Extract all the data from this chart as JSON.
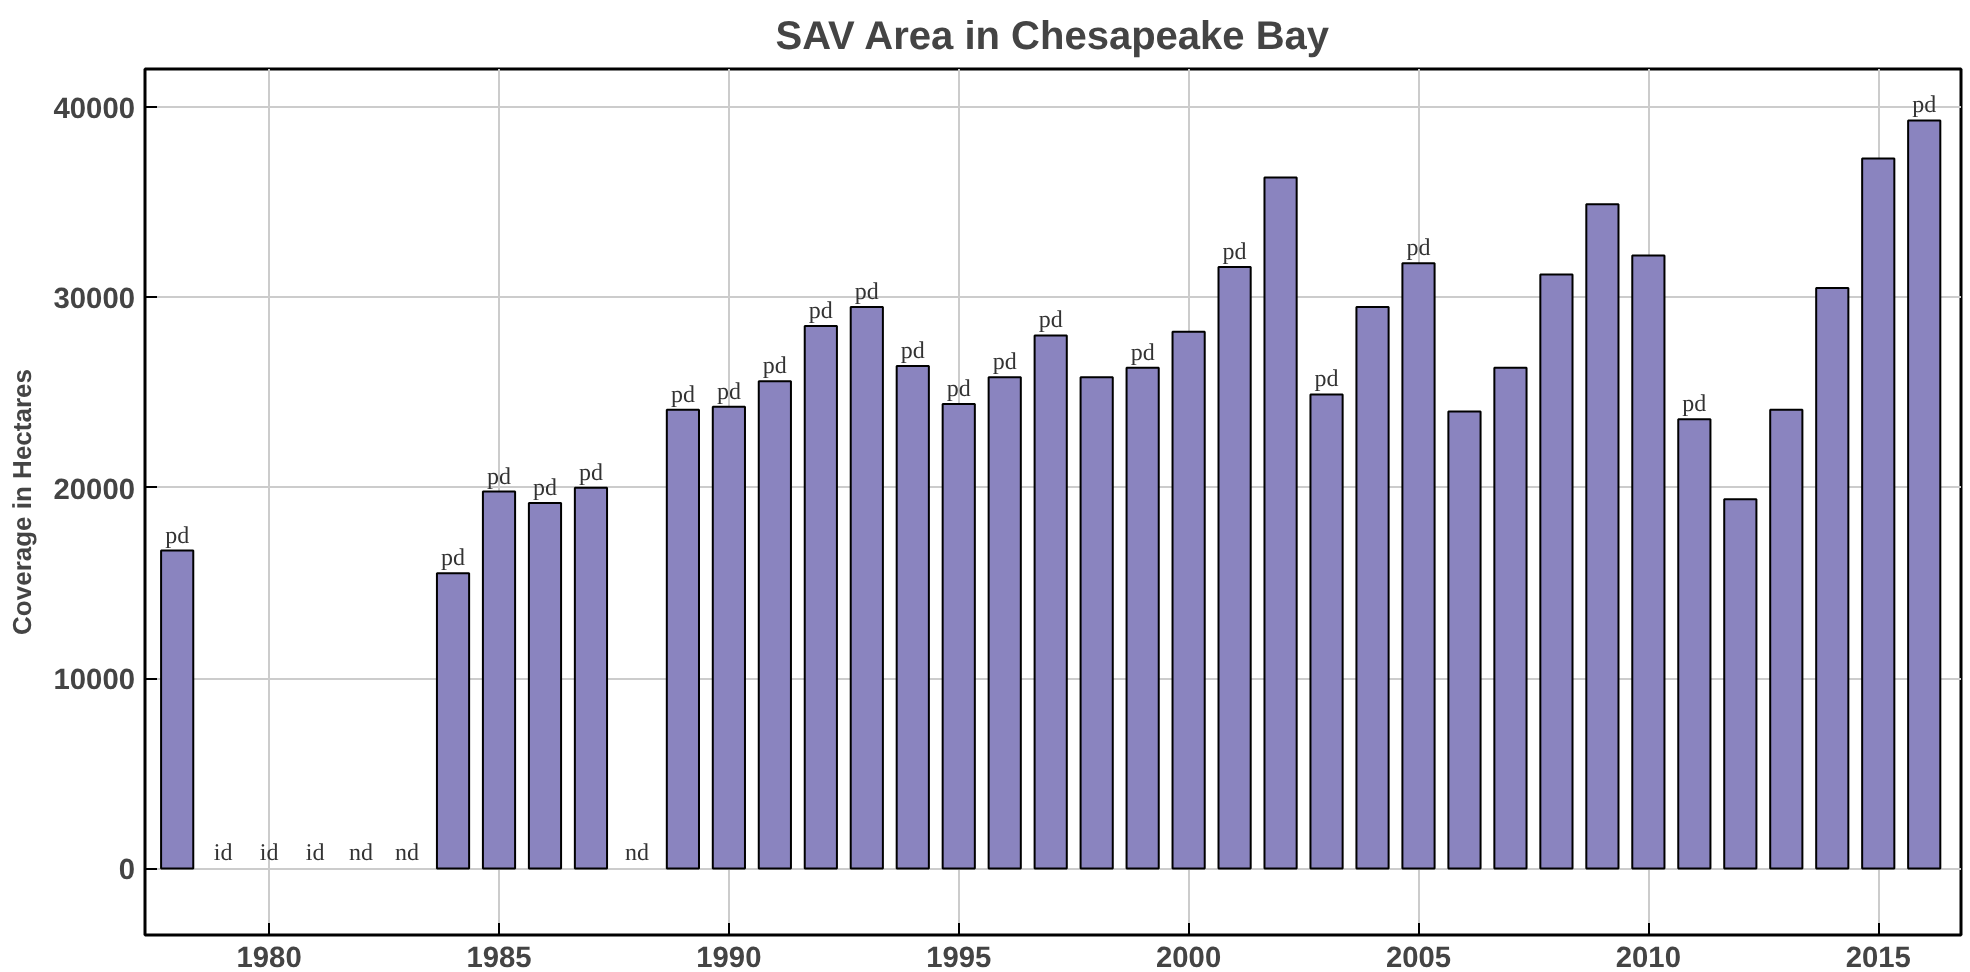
{
  "chart_data": {
    "type": "bar",
    "title": "SAV Area in Chesapeake Bay",
    "ylabel": "Coverage in Hectares",
    "x": [
      1978,
      1979,
      1980,
      1981,
      1982,
      1983,
      1984,
      1985,
      1986,
      1987,
      1988,
      1989,
      1990,
      1991,
      1992,
      1993,
      1994,
      1995,
      1996,
      1997,
      1998,
      1999,
      2000,
      2001,
      2002,
      2003,
      2004,
      2005,
      2006,
      2007,
      2008,
      2009,
      2010,
      2011,
      2012,
      2013,
      2014,
      2015,
      2016
    ],
    "values": [
      16700,
      null,
      null,
      null,
      null,
      null,
      15500,
      19800,
      19200,
      20000,
      null,
      24100,
      24250,
      25600,
      28500,
      29500,
      26400,
      24400,
      25800,
      28000,
      25800,
      26300,
      28200,
      31600,
      36300,
      24900,
      29500,
      31800,
      24000,
      26300,
      31200,
      34900,
      32200,
      23600,
      19400,
      24100,
      30500,
      37300,
      39300
    ],
    "value_labels": [
      "pd",
      "id",
      "id",
      "id",
      "nd",
      "nd",
      "pd",
      "pd",
      "pd",
      "pd",
      "nd",
      "pd",
      "pd",
      "pd",
      "pd",
      "pd",
      "pd",
      "pd",
      "pd",
      "pd",
      null,
      "pd",
      null,
      "pd",
      null,
      "pd",
      null,
      "pd",
      null,
      null,
      null,
      null,
      null,
      "pd",
      null,
      null,
      null,
      null,
      "pd"
    ],
    "color": "#8a84bf",
    "xlim": [
      1977.3,
      2016.8
    ],
    "xticks": [
      1980,
      1985,
      1990,
      1995,
      2000,
      2005,
      2010,
      2015
    ],
    "ylim": [
      -3500,
      42000
    ],
    "yticks": [
      0,
      10000,
      20000,
      30000,
      40000
    ],
    "grid": true
  }
}
